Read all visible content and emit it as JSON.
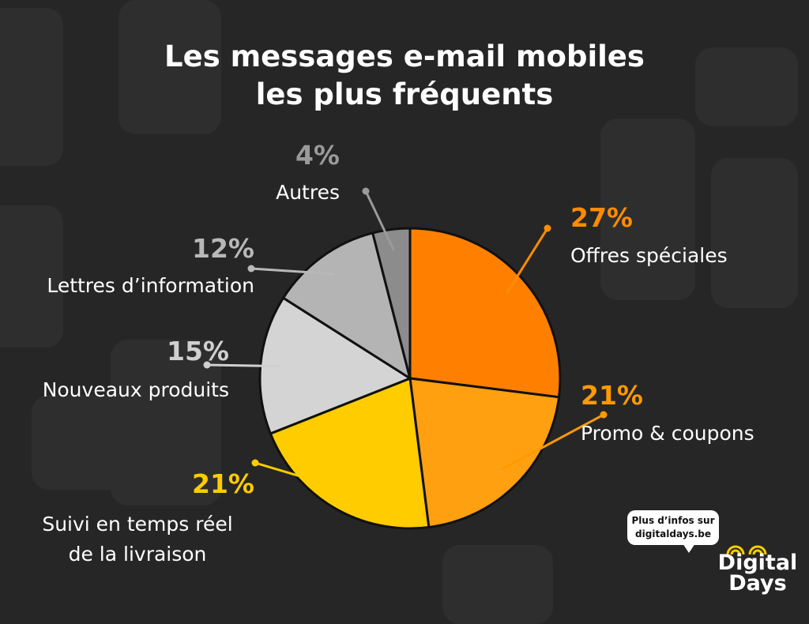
{
  "title": {
    "line1": "Les messages e-mail mobiles",
    "line2": "les plus fréquents"
  },
  "chart_data": {
    "type": "pie",
    "title": "Les messages e-mail mobiles les plus fréquents",
    "slices": [
      {
        "label": "Offres spéciales",
        "label_lines": [
          "Offres spéciales"
        ],
        "value": 27,
        "value_label": "27%",
        "color": "#ff8000",
        "label_color": "#ff8c00"
      },
      {
        "label": "Promo & coupons",
        "label_lines": [
          "Promo & coupons"
        ],
        "value": 21,
        "value_label": "21%",
        "color": "#ffa010",
        "label_color": "#ff9a00"
      },
      {
        "label": "Suivi en temps réel de la livraison",
        "label_lines": [
          "Suivi en temps réel",
          "de la livraison"
        ],
        "value": 21,
        "value_label": "21%",
        "color": "#ffcc00",
        "label_color": "#ffcc00"
      },
      {
        "label": "Nouveaux produits",
        "label_lines": [
          "Nouveaux produits"
        ],
        "value": 15,
        "value_label": "15%",
        "color": "#d4d4d4",
        "label_color": "#d0d0d0"
      },
      {
        "label": "Lettres d’information",
        "label_lines": [
          "Lettres d’information"
        ],
        "value": 12,
        "value_label": "12%",
        "color": "#b4b4b4",
        "label_color": "#b8b8b8"
      },
      {
        "label": "Autres",
        "label_lines": [
          "Autres"
        ],
        "value": 4,
        "value_label": "4%",
        "color": "#8c8c8c",
        "label_color": "#9a9a9a"
      }
    ],
    "start_angle_deg": 0,
    "direction": "clockwise"
  },
  "promo": {
    "line1": "Plus d’infos sur",
    "line2": "digitaldays.be"
  },
  "logo": {
    "line1": "Digital",
    "line2": "Days"
  }
}
